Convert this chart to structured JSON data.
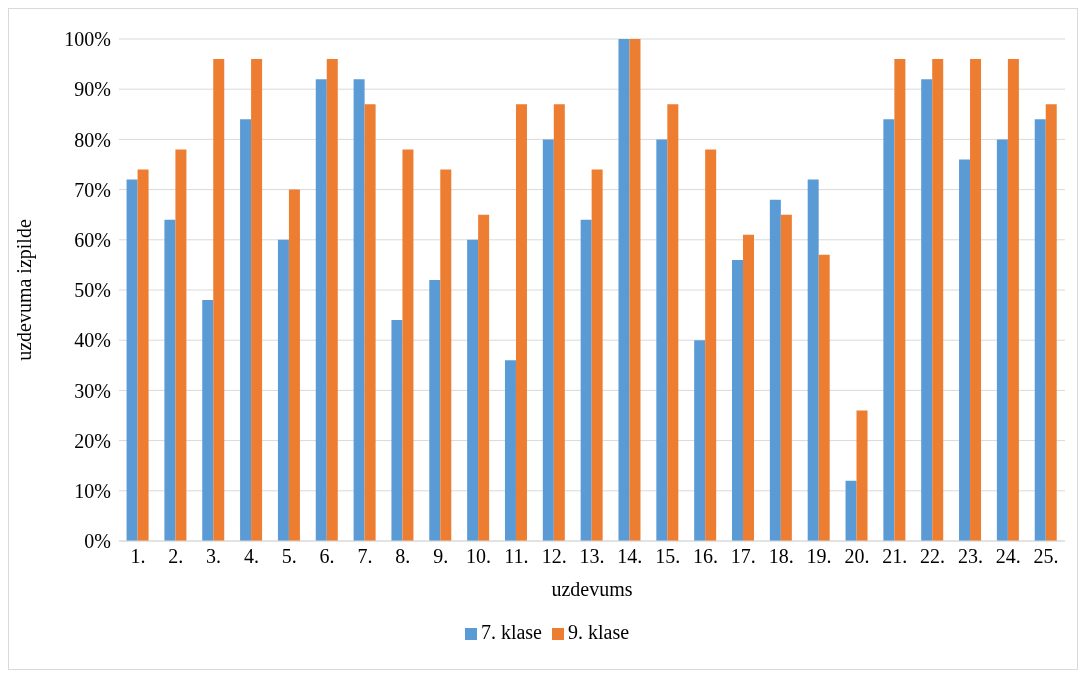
{
  "chart_data": {
    "type": "bar",
    "xlabel": "uzdevums",
    "ylabel": "uzdevuma izpilde",
    "categories": [
      "1.",
      "2.",
      "3.",
      "4.",
      "5.",
      "6.",
      "7.",
      "8.",
      "9.",
      "10.",
      "11.",
      "12.",
      "13.",
      "14.",
      "15.",
      "16.",
      "17.",
      "18.",
      "19.",
      "20.",
      "21.",
      "22.",
      "23.",
      "24.",
      "25."
    ],
    "series": [
      {
        "name": "7. klase",
        "color": "#5b9bd5",
        "values": [
          72,
          64,
          48,
          84,
          60,
          92,
          92,
          44,
          52,
          60,
          36,
          80,
          64,
          100,
          80,
          40,
          56,
          68,
          72,
          12,
          84,
          92,
          76,
          80,
          84
        ]
      },
      {
        "name": "9. klase",
        "color": "#ed7d31",
        "values": [
          74,
          78,
          96,
          96,
          70,
          96,
          87,
          78,
          74,
          65,
          87,
          87,
          74,
          100,
          87,
          78,
          61,
          65,
          57,
          26,
          96,
          96,
          96,
          96,
          87
        ]
      }
    ],
    "ylim": [
      0,
      100
    ],
    "yticks": [
      {
        "value": 0,
        "label": "0%"
      },
      {
        "value": 10,
        "label": "10%"
      },
      {
        "value": 20,
        "label": "20%"
      },
      {
        "value": 30,
        "label": "30%"
      },
      {
        "value": 40,
        "label": "40%"
      },
      {
        "value": 50,
        "label": "50%"
      },
      {
        "value": 60,
        "label": "60%"
      },
      {
        "value": 70,
        "label": "70%"
      },
      {
        "value": 80,
        "label": "80%"
      },
      {
        "value": 90,
        "label": "90%"
      },
      {
        "value": 100,
        "label": "100%"
      }
    ],
    "grid": "y",
    "legend": "bottom"
  }
}
